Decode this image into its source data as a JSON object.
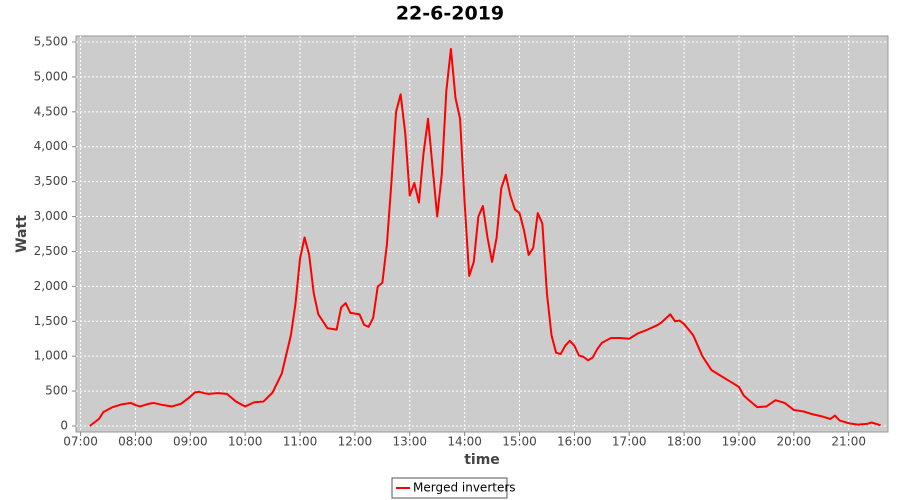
{
  "chart_data": {
    "type": "line",
    "title": "22-6-2019",
    "x_label": "time",
    "y_label": "Watt",
    "x": [
      "07:10",
      "07:15",
      "07:20",
      "07:25",
      "07:35",
      "07:45",
      "07:55",
      "08:00",
      "08:05",
      "08:15",
      "08:20",
      "08:30",
      "08:40",
      "08:50",
      "09:00",
      "09:05",
      "09:10",
      "09:15",
      "09:20",
      "09:30",
      "09:40",
      "09:50",
      "10:00",
      "10:10",
      "10:20",
      "10:30",
      "10:40",
      "10:50",
      "10:55",
      "11:00",
      "11:05",
      "11:10",
      "11:15",
      "11:20",
      "11:30",
      "11:40",
      "11:45",
      "11:50",
      "11:55",
      "12:05",
      "12:10",
      "12:15",
      "12:20",
      "12:25",
      "12:30",
      "12:35",
      "12:40",
      "12:45",
      "12:50",
      "12:55",
      "13:00",
      "13:05",
      "13:10",
      "13:15",
      "13:20",
      "13:25",
      "13:30",
      "13:35",
      "13:40",
      "13:45",
      "13:50",
      "13:55",
      "14:00",
      "14:05",
      "14:10",
      "14:15",
      "14:20",
      "14:25",
      "14:30",
      "14:35",
      "14:40",
      "14:45",
      "14:50",
      "14:55",
      "15:00",
      "15:05",
      "15:10",
      "15:15",
      "15:20",
      "15:25",
      "15:30",
      "15:35",
      "15:40",
      "15:45",
      "15:50",
      "15:55",
      "16:00",
      "16:05",
      "16:10",
      "16:15",
      "16:20",
      "16:25",
      "16:30",
      "16:40",
      "16:50",
      "17:00",
      "17:10",
      "17:20",
      "17:30",
      "17:35",
      "17:45",
      "17:50",
      "17:55",
      "18:00",
      "18:10",
      "18:20",
      "18:30",
      "18:40",
      "18:50",
      "19:00",
      "19:05",
      "19:10",
      "19:20",
      "19:30",
      "19:40",
      "19:50",
      "20:00",
      "20:10",
      "20:20",
      "20:30",
      "20:40",
      "20:45",
      "20:50",
      "21:00",
      "21:10",
      "21:20",
      "21:25",
      "21:35"
    ],
    "series": [
      {
        "name": "Merged inverters",
        "color": "#ff0000",
        "values": [
          0,
          50,
          100,
          200,
          270,
          310,
          330,
          300,
          280,
          320,
          330,
          300,
          280,
          320,
          420,
          480,
          490,
          470,
          460,
          470,
          460,
          350,
          280,
          340,
          350,
          480,
          750,
          1300,
          1750,
          2400,
          2700,
          2450,
          1900,
          1600,
          1400,
          1380,
          1700,
          1760,
          1620,
          1600,
          1450,
          1420,
          1550,
          2000,
          2050,
          2600,
          3500,
          4500,
          4750,
          4200,
          3300,
          3480,
          3200,
          3900,
          4400,
          3700,
          3000,
          3600,
          4800,
          5400,
          4700,
          4400,
          3200,
          2150,
          2350,
          3000,
          3150,
          2700,
          2350,
          2700,
          3400,
          3600,
          3300,
          3100,
          3050,
          2800,
          2450,
          2550,
          3050,
          2900,
          1900,
          1300,
          1050,
          1030,
          1150,
          1220,
          1150,
          1010,
          990,
          940,
          980,
          1100,
          1190,
          1260,
          1260,
          1250,
          1330,
          1380,
          1440,
          1480,
          1600,
          1500,
          1510,
          1460,
          1300,
          1000,
          800,
          720,
          640,
          560,
          440,
          380,
          270,
          280,
          370,
          330,
          230,
          210,
          170,
          140,
          100,
          150,
          80,
          40,
          20,
          30,
          50,
          10
        ]
      }
    ],
    "xlim": [
      "06:55",
      "21:43"
    ],
    "xticks": [
      "07:00",
      "08:00",
      "09:00",
      "10:00",
      "11:00",
      "12:00",
      "13:00",
      "14:00",
      "15:00",
      "16:00",
      "17:00",
      "18:00",
      "19:00",
      "20:00",
      "21:00"
    ],
    "ylim": [
      -86,
      5586
    ],
    "yticks": [
      0,
      {
        "value": 500,
        "label": "500"
      },
      {
        "value": 1000,
        "label": "1,000"
      },
      {
        "value": 1500,
        "label": "1,500"
      },
      {
        "value": 2000,
        "label": "2,000"
      },
      {
        "value": 2500,
        "label": "2,500"
      },
      {
        "value": 3000,
        "label": "3,000"
      },
      {
        "value": 3500,
        "label": "3,500"
      },
      {
        "value": 4000,
        "label": "4,000"
      },
      {
        "value": 4500,
        "label": "4,500"
      },
      {
        "value": 5000,
        "label": "5,000"
      },
      {
        "value": 5500,
        "label": "5,500"
      }
    ],
    "grid": true,
    "legend": "bottom"
  }
}
